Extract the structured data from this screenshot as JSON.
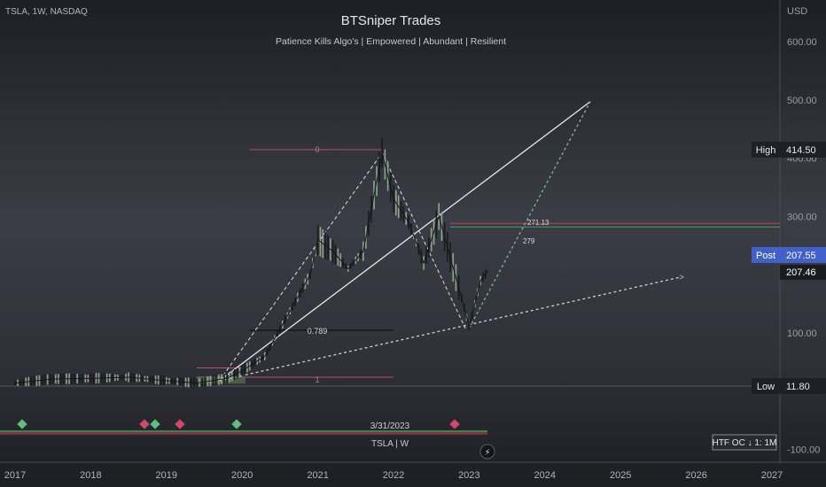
{
  "header": {
    "symbol_info": "TSLA, 1W, NASDAQ",
    "title": "BTSniper Trades",
    "subtitle": "Patience Kills Algo's  |  Empowered  |  Abundant  |  Resilient"
  },
  "axis": {
    "currency": "USD",
    "price_ticks": [
      "600.00",
      "500.00",
      "400.00",
      "300.00",
      "100.00",
      "-100.00"
    ],
    "year_ticks": [
      "2017",
      "2018",
      "2019",
      "2020",
      "2021",
      "2022",
      "2023",
      "2024",
      "2025",
      "2026",
      "2027"
    ]
  },
  "badges": {
    "high_label": "High",
    "high_value": "414.50",
    "post_label": "Post",
    "post_value": "207.55",
    "last_value": "207.46",
    "low_label": "Low",
    "low_value": "11.80"
  },
  "annotations": {
    "fib_top": "0",
    "fib_mid": "0.789",
    "fib_bottom": "1",
    "level_a": "271.13",
    "level_b": "279",
    "date_label": "3/31/2023",
    "ticker_label": "TSLA | W",
    "htf_label": "HTF OC ↓ 1: 1M"
  },
  "chart_data": {
    "type": "line",
    "title": "BTSniper Trades",
    "xlabel": "",
    "ylabel": "",
    "x_range": [
      2017,
      2027
    ],
    "ylim": [
      -110,
      660
    ],
    "price_series": {
      "x": [
        2017.0,
        2017.5,
        2018.0,
        2018.5,
        2019.0,
        2019.4,
        2019.8,
        2020.0,
        2020.3,
        2020.6,
        2020.9,
        2021.0,
        2021.2,
        2021.4,
        2021.6,
        2021.85,
        2022.0,
        2022.2,
        2022.4,
        2022.6,
        2022.75,
        2022.9,
        2023.0,
        2023.15,
        2023.25
      ],
      "y": [
        14,
        21,
        22,
        24,
        18,
        14,
        22,
        35,
        60,
        130,
        200,
        260,
        240,
        210,
        240,
        409,
        330,
        290,
        220,
        300,
        230,
        160,
        110,
        190,
        207
      ]
    },
    "levels": {
      "high": 414.5,
      "post": 207.55,
      "last": 207.46,
      "low": 11.8,
      "level_a": 271.13,
      "level_b": 279
    },
    "trendlines": [
      {
        "from": [
          2019.7,
          18
        ],
        "to": [
          2024.6,
          497
        ],
        "style": "solid"
      },
      {
        "from": [
          2019.7,
          18
        ],
        "to": [
          2025.8,
          196
        ],
        "style": "dashed"
      },
      {
        "from": [
          2023.0,
          108
        ],
        "to": [
          2024.6,
          497
        ],
        "style": "dashed"
      }
    ],
    "grid": true,
    "legend": "none"
  }
}
